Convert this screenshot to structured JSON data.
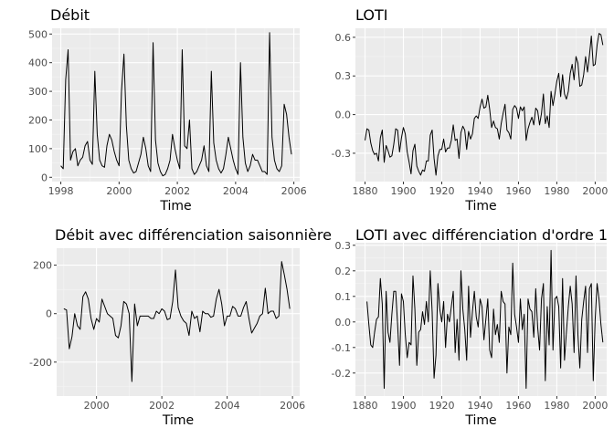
{
  "chart_data": [
    {
      "type": "line",
      "title": "Débit",
      "xlabel": "Time",
      "ylabel": "",
      "xlim": [
        1997.7,
        2006.2
      ],
      "ylim": [
        -15,
        520
      ],
      "xticks": [
        1998,
        2000,
        2002,
        2004,
        2006
      ],
      "xtick_labels": [
        "1998",
        "2000",
        "2002",
        "2004",
        "2006"
      ],
      "yticks": [
        0,
        100,
        200,
        300,
        400,
        500
      ],
      "ytick_labels": [
        "0",
        "100",
        "200",
        "300",
        "400",
        "500"
      ],
      "grid": true,
      "series": [
        {
          "x": [
            1998.0,
            1998.083,
            1998.167,
            1998.25,
            1998.333,
            1998.417,
            1998.5,
            1998.583,
            1998.667,
            1998.75,
            1998.833,
            1998.917,
            1999.0,
            1999.083,
            1999.167,
            1999.25,
            1999.333,
            1999.417,
            1999.5,
            1999.583,
            1999.667,
            1999.75,
            1999.833,
            1999.917,
            2000.0,
            2000.083,
            2000.167,
            2000.25,
            2000.333,
            2000.417,
            2000.5,
            2000.583,
            2000.667,
            2000.75,
            2000.833,
            2000.917,
            2001.0,
            2001.083,
            2001.167,
            2001.25,
            2001.333,
            2001.417,
            2001.5,
            2001.583,
            2001.667,
            2001.75,
            2001.833,
            2001.917,
            2002.0,
            2002.083,
            2002.167,
            2002.25,
            2002.333,
            2002.417,
            2002.5,
            2002.583,
            2002.667,
            2002.75,
            2002.833,
            2002.917,
            2003.0,
            2003.083,
            2003.167,
            2003.25,
            2003.333,
            2003.417,
            2003.5,
            2003.583,
            2003.667,
            2003.75,
            2003.833,
            2003.917,
            2004.0,
            2004.083,
            2004.167,
            2004.25,
            2004.333,
            2004.417,
            2004.5,
            2004.583,
            2004.667,
            2004.75,
            2004.833,
            2004.917,
            2005.0,
            2005.083,
            2005.167,
            2005.25,
            2005.333,
            2005.417,
            2005.5,
            2005.583,
            2005.667,
            2005.75,
            2005.833,
            2005.917
          ],
          "y": [
            40,
            30,
            340,
            445,
            60,
            90,
            100,
            40,
            60,
            70,
            110,
            125,
            60,
            45,
            370,
            150,
            60,
            40,
            35,
            110,
            150,
            130,
            90,
            60,
            40,
            300,
            430,
            180,
            60,
            30,
            15,
            20,
            50,
            80,
            140,
            100,
            40,
            20,
            470,
            130,
            50,
            20,
            5,
            10,
            30,
            60,
            150,
            100,
            60,
            30,
            445,
            110,
            100,
            200,
            30,
            10,
            20,
            40,
            60,
            110,
            40,
            20,
            370,
            120,
            60,
            30,
            15,
            30,
            80,
            140,
            100,
            60,
            30,
            10,
            400,
            140,
            50,
            20,
            40,
            80,
            60,
            60,
            40,
            20,
            20,
            10,
            505,
            140,
            60,
            30,
            20,
            40,
            255,
            220,
            140,
            80
          ]
        }
      ]
    },
    {
      "type": "line",
      "title": "LOTI",
      "xlabel": "Time",
      "ylabel": "",
      "xlim": [
        1875,
        2006
      ],
      "ylim": [
        -0.52,
        0.67
      ],
      "xticks": [
        1880,
        1900,
        1920,
        1940,
        1960,
        1980,
        2000
      ],
      "xtick_labels": [
        "1880",
        "1900",
        "1920",
        "1940",
        "1960",
        "1980",
        "2000"
      ],
      "yticks": [
        -0.3,
        0.0,
        0.3,
        0.6
      ],
      "ytick_labels": [
        "-0.3",
        "0.0",
        "0.3",
        "0.6"
      ],
      "grid": true,
      "series": [
        {
          "x": [
            1880,
            1881,
            1882,
            1883,
            1884,
            1885,
            1886,
            1887,
            1888,
            1889,
            1890,
            1891,
            1892,
            1893,
            1894,
            1895,
            1896,
            1897,
            1898,
            1899,
            1900,
            1901,
            1902,
            1903,
            1904,
            1905,
            1906,
            1907,
            1908,
            1909,
            1910,
            1911,
            1912,
            1913,
            1914,
            1915,
            1916,
            1917,
            1918,
            1919,
            1920,
            1921,
            1922,
            1923,
            1924,
            1925,
            1926,
            1927,
            1928,
            1929,
            1930,
            1931,
            1932,
            1933,
            1934,
            1935,
            1936,
            1937,
            1938,
            1939,
            1940,
            1941,
            1942,
            1943,
            1944,
            1945,
            1946,
            1947,
            1948,
            1949,
            1950,
            1951,
            1952,
            1953,
            1954,
            1955,
            1956,
            1957,
            1958,
            1959,
            1960,
            1961,
            1962,
            1963,
            1964,
            1965,
            1966,
            1967,
            1968,
            1969,
            1970,
            1971,
            1972,
            1973,
            1974,
            1975,
            1976,
            1977,
            1978,
            1979,
            1980,
            1981,
            1982,
            1983,
            1984,
            1985,
            1986,
            1987,
            1988,
            1989,
            1990,
            1991,
            1992,
            1993,
            1994,
            1995,
            1996,
            1997,
            1998,
            1999,
            2000,
            2001,
            2002,
            2003,
            2004
          ],
          "y": [
            -0.2,
            -0.11,
            -0.12,
            -0.22,
            -0.28,
            -0.31,
            -0.3,
            -0.36,
            -0.18,
            -0.12,
            -0.37,
            -0.24,
            -0.28,
            -0.33,
            -0.32,
            -0.23,
            -0.11,
            -0.12,
            -0.29,
            -0.18,
            -0.1,
            -0.15,
            -0.29,
            -0.37,
            -0.46,
            -0.28,
            -0.23,
            -0.4,
            -0.44,
            -0.47,
            -0.43,
            -0.44,
            -0.36,
            -0.36,
            -0.16,
            -0.12,
            -0.34,
            -0.47,
            -0.32,
            -0.27,
            -0.27,
            -0.19,
            -0.29,
            -0.26,
            -0.26,
            -0.2,
            -0.08,
            -0.2,
            -0.19,
            -0.34,
            -0.14,
            -0.09,
            -0.12,
            -0.27,
            -0.13,
            -0.19,
            -0.15,
            -0.03,
            -0.01,
            -0.03,
            0.06,
            0.12,
            0.05,
            0.06,
            0.15,
            0.04,
            -0.1,
            -0.05,
            -0.1,
            -0.11,
            -0.19,
            -0.07,
            0.01,
            0.08,
            -0.12,
            -0.14,
            -0.19,
            0.04,
            0.07,
            0.05,
            -0.03,
            0.06,
            0.03,
            0.06,
            -0.2,
            -0.11,
            -0.06,
            -0.02,
            -0.08,
            0.05,
            0.03,
            -0.08,
            0.01,
            0.16,
            -0.07,
            -0.01,
            -0.1,
            0.18,
            0.07,
            0.16,
            0.26,
            0.32,
            0.14,
            0.31,
            0.16,
            0.12,
            0.18,
            0.32,
            0.39,
            0.27,
            0.45,
            0.4,
            0.22,
            0.23,
            0.31,
            0.45,
            0.33,
            0.46,
            0.61,
            0.38,
            0.39,
            0.54,
            0.63,
            0.62,
            0.54
          ]
        }
      ]
    },
    {
      "type": "line",
      "title": "Débit avec différenciation saisonnière",
      "xlabel": "Time",
      "ylabel": "",
      "xlim": [
        1998.78,
        2006.22
      ],
      "ylim": [
        -340,
        270
      ],
      "xticks": [
        2000,
        2002,
        2004,
        2006
      ],
      "xtick_labels": [
        "2000",
        "2002",
        "2004",
        "2006"
      ],
      "yticks": [
        -200,
        0,
        200
      ],
      "ytick_labels": [
        "-200",
        "0",
        "200"
      ],
      "grid": true,
      "series": [
        {
          "x": [
            1999.0,
            1999.083,
            1999.167,
            1999.25,
            1999.333,
            1999.417,
            1999.5,
            1999.583,
            1999.667,
            1999.75,
            1999.833,
            1999.917,
            2000.0,
            2000.083,
            2000.167,
            2000.25,
            2000.333,
            2000.417,
            2000.5,
            2000.583,
            2000.667,
            2000.75,
            2000.833,
            2000.917,
            2001.0,
            2001.083,
            2001.167,
            2001.25,
            2001.333,
            2001.417,
            2001.5,
            2001.583,
            2001.667,
            2001.75,
            2001.833,
            2001.917,
            2002.0,
            2002.083,
            2002.167,
            2002.25,
            2002.333,
            2002.417,
            2002.5,
            2002.583,
            2002.667,
            2002.75,
            2002.833,
            2002.917,
            2003.0,
            2003.083,
            2003.167,
            2003.25,
            2003.333,
            2003.417,
            2003.5,
            2003.583,
            2003.667,
            2003.75,
            2003.833,
            2003.917,
            2004.0,
            2004.083,
            2004.167,
            2004.25,
            2004.333,
            2004.417,
            2004.5,
            2004.583,
            2004.667,
            2004.75,
            2004.833,
            2004.917,
            2005.0,
            2005.083,
            2005.167,
            2005.25,
            2005.333,
            2005.417,
            2005.5,
            2005.583,
            2005.667,
            2005.75,
            2005.833,
            2005.917
          ],
          "y": [
            20,
            15,
            -145,
            -95,
            0,
            -50,
            -65,
            70,
            90,
            60,
            -20,
            -65,
            -20,
            -35,
            60,
            30,
            0,
            -10,
            -20,
            -90,
            -100,
            -50,
            50,
            40,
            0,
            -280,
            40,
            -50,
            -10,
            -10,
            -10,
            -10,
            -20,
            -20,
            10,
            0,
            20,
            10,
            -25,
            -20,
            50,
            180,
            25,
            -10,
            -30,
            -40,
            -90,
            10,
            -20,
            -10,
            -75,
            10,
            0,
            0,
            -15,
            -10,
            60,
            100,
            40,
            -50,
            -10,
            -10,
            30,
            20,
            -10,
            -10,
            25,
            50,
            -20,
            -80,
            -60,
            -40,
            -10,
            0,
            105,
            0,
            10,
            10,
            -20,
            -10,
            215,
            160,
            100,
            20
          ]
        }
      ]
    },
    {
      "type": "line",
      "title": "LOTI avec différenciation d'ordre 1",
      "xlabel": "Time",
      "ylabel": "",
      "xlim": [
        1875,
        2006
      ],
      "ylim": [
        -0.29,
        0.31
      ],
      "xticks": [
        1880,
        1900,
        1920,
        1940,
        1960,
        1980,
        2000
      ],
      "xtick_labels": [
        "1880",
        "1900",
        "1920",
        "1940",
        "1960",
        "1980",
        "2000"
      ],
      "yticks": [
        -0.2,
        -0.1,
        0.0,
        0.1,
        0.2,
        0.3
      ],
      "ytick_labels": [
        "-0.2",
        "-0.1",
        "0.0",
        "0.1",
        "0.2",
        "0.3"
      ],
      "grid": true,
      "series": [
        {
          "x": [
            1881,
            1882,
            1883,
            1884,
            1885,
            1886,
            1887,
            1888,
            1889,
            1890,
            1891,
            1892,
            1893,
            1894,
            1895,
            1896,
            1897,
            1898,
            1899,
            1900,
            1901,
            1902,
            1903,
            1904,
            1905,
            1906,
            1907,
            1908,
            1909,
            1910,
            1911,
            1912,
            1913,
            1914,
            1915,
            1916,
            1917,
            1918,
            1919,
            1920,
            1921,
            1922,
            1923,
            1924,
            1925,
            1926,
            1927,
            1928,
            1929,
            1930,
            1931,
            1932,
            1933,
            1934,
            1935,
            1936,
            1937,
            1938,
            1939,
            1940,
            1941,
            1942,
            1943,
            1944,
            1945,
            1946,
            1947,
            1948,
            1949,
            1950,
            1951,
            1952,
            1953,
            1954,
            1955,
            1956,
            1957,
            1958,
            1959,
            1960,
            1961,
            1962,
            1963,
            1964,
            1965,
            1966,
            1967,
            1968,
            1969,
            1970,
            1971,
            1972,
            1973,
            1974,
            1975,
            1976,
            1977,
            1978,
            1979,
            1980,
            1981,
            1982,
            1983,
            1984,
            1985,
            1986,
            1987,
            1988,
            1989,
            1990,
            1991,
            1992,
            1993,
            1994,
            1995,
            1996,
            1997,
            1998,
            1999,
            2000,
            2001,
            2002,
            2003,
            2004
          ],
          "y": [
            0.08,
            -0.01,
            -0.09,
            -0.1,
            -0.04,
            0.01,
            0.02,
            0.17,
            0.07,
            -0.26,
            0.12,
            -0.04,
            -0.08,
            0.03,
            0.12,
            0.12,
            -0.01,
            -0.17,
            0.11,
            0.08,
            -0.05,
            -0.14,
            -0.08,
            -0.09,
            0.18,
            0.05,
            -0.17,
            -0.04,
            -0.03,
            0.04,
            -0.01,
            0.08,
            0.0,
            0.2,
            0.04,
            -0.22,
            -0.13,
            0.15,
            0.05,
            0.0,
            0.08,
            -0.1,
            0.03,
            0.0,
            0.06,
            0.12,
            -0.12,
            0.01,
            -0.15,
            0.2,
            0.05,
            -0.03,
            -0.15,
            0.14,
            -0.06,
            0.04,
            0.12,
            0.02,
            -0.02,
            0.09,
            0.06,
            -0.07,
            0.01,
            0.09,
            -0.11,
            -0.14,
            0.05,
            -0.05,
            -0.01,
            -0.08,
            0.12,
            0.08,
            0.07,
            -0.2,
            -0.02,
            -0.05,
            0.23,
            0.03,
            -0.02,
            -0.08,
            0.09,
            -0.03,
            0.03,
            -0.26,
            0.09,
            0.05,
            0.04,
            -0.06,
            0.13,
            -0.02,
            -0.11,
            0.09,
            0.15,
            -0.23,
            0.06,
            -0.09,
            0.28,
            -0.11,
            0.09,
            0.1,
            0.06,
            -0.18,
            0.17,
            -0.15,
            -0.04,
            0.06,
            0.14,
            0.07,
            -0.12,
            0.18,
            -0.05,
            -0.18,
            0.01,
            0.08,
            0.14,
            -0.12,
            0.13,
            0.15,
            -0.23,
            0.01,
            0.15,
            0.09,
            -0.01,
            -0.08
          ]
        }
      ]
    }
  ]
}
